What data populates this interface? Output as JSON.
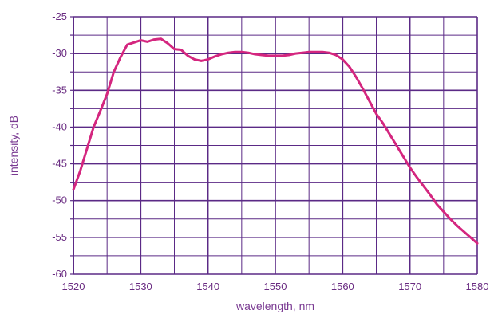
{
  "chart_data": {
    "type": "line",
    "xlabel": "wavelength, nm",
    "ylabel": "intensity, dB",
    "xlim": [
      1520,
      1580
    ],
    "ylim": [
      -60,
      -25
    ],
    "x_major_ticks": [
      1520,
      1530,
      1540,
      1550,
      1560,
      1570,
      1580
    ],
    "x_tick_labels": [
      "1520",
      "1530",
      "1540",
      "1550",
      "1560",
      "1570",
      "1580"
    ],
    "y_major_ticks": [
      -25,
      -30,
      -35,
      -40,
      -45,
      -50,
      -55,
      -60
    ],
    "y_tick_labels": [
      "-25",
      "-30",
      "-35",
      "-40",
      "-45",
      "-50",
      "-55",
      "-60"
    ],
    "x_minor_step": 5,
    "y_minor_step": 2.5,
    "grid": true,
    "colors": {
      "line": "#d4267f",
      "grid": "#5b2a86",
      "text": "#6a2c82"
    },
    "series": [
      {
        "values": [
          [
            1520,
            -48.5
          ],
          [
            1521,
            -46.0
          ],
          [
            1522,
            -43.0
          ],
          [
            1523,
            -40.0
          ],
          [
            1524,
            -37.8
          ],
          [
            1525,
            -35.5
          ],
          [
            1526,
            -32.5
          ],
          [
            1527,
            -30.5
          ],
          [
            1528,
            -28.8
          ],
          [
            1529,
            -28.5
          ],
          [
            1530,
            -28.2
          ],
          [
            1531,
            -28.4
          ],
          [
            1532,
            -28.1
          ],
          [
            1533,
            -28.0
          ],
          [
            1534,
            -28.6
          ],
          [
            1535,
            -29.4
          ],
          [
            1536,
            -29.5
          ],
          [
            1537,
            -30.3
          ],
          [
            1538,
            -30.8
          ],
          [
            1539,
            -31.0
          ],
          [
            1540,
            -30.8
          ],
          [
            1541,
            -30.4
          ],
          [
            1542,
            -30.1
          ],
          [
            1543,
            -29.9
          ],
          [
            1544,
            -29.8
          ],
          [
            1545,
            -29.8
          ],
          [
            1546,
            -29.9
          ],
          [
            1547,
            -30.1
          ],
          [
            1548,
            -30.2
          ],
          [
            1549,
            -30.3
          ],
          [
            1550,
            -30.3
          ],
          [
            1551,
            -30.3
          ],
          [
            1552,
            -30.2
          ],
          [
            1553,
            -30.0
          ],
          [
            1554,
            -29.9
          ],
          [
            1555,
            -29.8
          ],
          [
            1556,
            -29.8
          ],
          [
            1557,
            -29.8
          ],
          [
            1558,
            -29.9
          ],
          [
            1559,
            -30.2
          ],
          [
            1560,
            -30.8
          ],
          [
            1561,
            -31.8
          ],
          [
            1562,
            -33.2
          ],
          [
            1563,
            -34.8
          ],
          [
            1564,
            -36.5
          ],
          [
            1565,
            -38.2
          ],
          [
            1566,
            -39.5
          ],
          [
            1567,
            -41.0
          ],
          [
            1568,
            -42.5
          ],
          [
            1569,
            -44.0
          ],
          [
            1570,
            -45.5
          ],
          [
            1571,
            -46.8
          ],
          [
            1572,
            -48.0
          ],
          [
            1573,
            -49.2
          ],
          [
            1574,
            -50.5
          ],
          [
            1575,
            -51.5
          ],
          [
            1576,
            -52.5
          ],
          [
            1577,
            -53.4
          ],
          [
            1578,
            -54.2
          ],
          [
            1579,
            -55.0
          ],
          [
            1580,
            -55.8
          ]
        ]
      }
    ]
  }
}
